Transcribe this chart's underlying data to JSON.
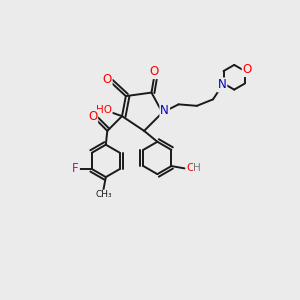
{
  "bg_color": "#ebebeb",
  "bond_color": "#1a1a1a",
  "bond_width": 1.4,
  "atom_colors": {
    "O": "#ff0000",
    "N": "#0000cc",
    "F": "#cc00aa",
    "C": "#1a1a1a",
    "H": "#777777"
  },
  "figsize": [
    3.0,
    3.0
  ],
  "dpi": 100,
  "xlim": [
    0,
    10
  ],
  "ylim": [
    0,
    10
  ]
}
